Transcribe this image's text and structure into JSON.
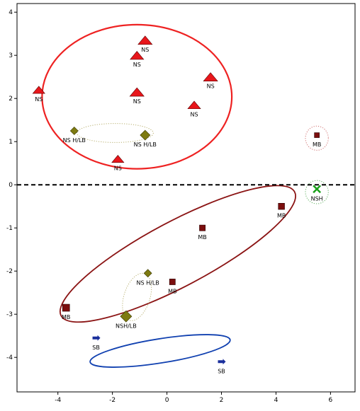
{
  "chart_data": {
    "type": "scatter",
    "xlim": [
      -5.5,
      6.9
    ],
    "ylim": [
      -4.8,
      4.2
    ],
    "xticks": [
      -4,
      -2,
      0,
      2,
      4,
      6
    ],
    "yticks": [
      4,
      3,
      2,
      1,
      0,
      -1,
      -2,
      -3,
      -4
    ],
    "xtick_labels": [
      "-4",
      "-2",
      "0",
      "2",
      "4",
      "6"
    ],
    "ytick_labels": [
      "4",
      "3",
      "2",
      "1",
      "0",
      "-1",
      "-2",
      "-3",
      "-4"
    ],
    "grid": false,
    "reference_line": {
      "y": 0,
      "style": "dashed",
      "color": "#000000"
    },
    "colors": {
      "NS": "#e8161b",
      "NS H/LB": "#7d7a10",
      "MB": "#7b0e0e",
      "NSH": "#18a018",
      "SB": "#1a2f9c",
      "ellipse_NS": "#ee2222",
      "ellipse_MB": "#8b1414",
      "ellipse_SB": "#1040b0",
      "ellipse_dotted": "#b8b070",
      "ellipse_dotted_green": "#60b060",
      "ellipse_dotted_red": "#d07070"
    },
    "points": [
      {
        "label": "NS",
        "group": "NS",
        "marker": "triangle",
        "x": -0.8,
        "y": 3.35,
        "size": 1.0
      },
      {
        "label": "NS",
        "group": "NS",
        "marker": "triangle",
        "x": -1.1,
        "y": 3.0,
        "size": 0.9
      },
      {
        "label": "NS",
        "group": "NS",
        "marker": "triangle",
        "x": 1.6,
        "y": 2.5,
        "size": 1.0
      },
      {
        "label": "NS",
        "group": "NS",
        "marker": "triangle",
        "x": -4.7,
        "y": 2.2,
        "size": 0.7
      },
      {
        "label": "NS",
        "group": "NS",
        "marker": "triangle",
        "x": -1.1,
        "y": 2.15,
        "size": 1.0
      },
      {
        "label": "NS",
        "group": "NS",
        "marker": "triangle",
        "x": 1.0,
        "y": 1.85,
        "size": 0.8
      },
      {
        "label": "NS",
        "group": "NS",
        "marker": "triangle",
        "x": -1.8,
        "y": 0.6,
        "size": 0.7
      },
      {
        "label": "NS H/LB",
        "group": "NS H/LB",
        "marker": "diamond",
        "x": -3.4,
        "y": 1.25,
        "size": 0.5
      },
      {
        "label": "NS H/LB",
        "group": "NS H/LB",
        "marker": "diamond",
        "x": -0.8,
        "y": 1.15,
        "size": 0.8
      },
      {
        "label": "MB",
        "group": "MB",
        "marker": "square",
        "x": 5.5,
        "y": 1.15,
        "size": 0.5
      },
      {
        "label": "NSH",
        "group": "NSH",
        "marker": "x",
        "x": 5.5,
        "y": -0.1,
        "size": 1.0
      },
      {
        "label": "MB",
        "group": "MB",
        "marker": "square",
        "x": 4.2,
        "y": -0.5,
        "size": 0.8
      },
      {
        "label": "MB",
        "group": "MB",
        "marker": "square",
        "x": 1.3,
        "y": -1.0,
        "size": 0.7
      },
      {
        "label": "NS H/LB",
        "group": "NS H/LB",
        "marker": "diamond",
        "x": -0.7,
        "y": -2.05,
        "size": 0.5
      },
      {
        "label": "MB",
        "group": "MB",
        "marker": "square",
        "x": 0.2,
        "y": -2.25,
        "size": 0.7
      },
      {
        "label": "MB",
        "group": "MB",
        "marker": "square",
        "x": -3.7,
        "y": -2.85,
        "size": 1.0
      },
      {
        "label": "NSH/LB",
        "group": "NS H/LB",
        "marker": "diamond",
        "x": -1.5,
        "y": -3.05,
        "size": 1.0
      },
      {
        "label": "SB",
        "group": "SB",
        "marker": "arrow",
        "x": -2.6,
        "y": -3.55,
        "size": 0.6
      },
      {
        "label": "SB",
        "group": "SB",
        "marker": "arrow",
        "x": 2.0,
        "y": -4.1,
        "size": 0.6
      }
    ],
    "ellipses": [
      {
        "group": "NS",
        "cx": -1.1,
        "cy": 2.04,
        "rx": 3.48,
        "ry": 1.67,
        "angle": 0,
        "style": "solid",
        "color_key": "ellipse_NS",
        "width": 2.2
      },
      {
        "group": "NS H/LB",
        "cx": -1.9,
        "cy": 1.2,
        "rx": 1.4,
        "ry": 0.22,
        "angle": 0,
        "style": "dotted",
        "color_key": "ellipse_dotted",
        "width": 1
      },
      {
        "group": "MB",
        "cx": 5.5,
        "cy": 1.08,
        "rx": 0.42,
        "ry": 0.28,
        "angle": 0,
        "style": "dotted",
        "color_key": "ellipse_dotted_red",
        "width": 1
      },
      {
        "group": "NSH",
        "cx": 5.5,
        "cy": -0.17,
        "rx": 0.42,
        "ry": 0.27,
        "angle": 0,
        "style": "dotted",
        "color_key": "ellipse_dotted_green",
        "width": 1
      },
      {
        "group": "MB",
        "cx": 0.4,
        "cy": -1.6,
        "rx": 4.85,
        "ry": 0.75,
        "angle": 28,
        "style": "solid",
        "color_key": "ellipse_MB",
        "width": 1.8
      },
      {
        "group": "NS H/LB",
        "cx": -1.1,
        "cy": -2.6,
        "rx": 0.9,
        "ry": 0.3,
        "angle": 72,
        "style": "dotted",
        "color_key": "ellipse_dotted",
        "width": 1
      },
      {
        "group": "SB",
        "cx": -0.25,
        "cy": -3.85,
        "rx": 2.6,
        "ry": 0.28,
        "angle": 9,
        "style": "solid",
        "color_key": "ellipse_SB",
        "width": 1.8
      }
    ]
  }
}
